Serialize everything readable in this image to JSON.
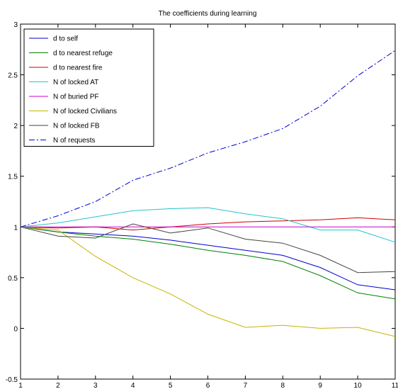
{
  "chart_data": {
    "type": "line",
    "title": "The coefficients during learning",
    "xlabel": "",
    "ylabel": "",
    "xlim": [
      1,
      11
    ],
    "ylim": [
      -0.5,
      3
    ],
    "x": [
      1,
      2,
      3,
      4,
      5,
      6,
      7,
      8,
      9,
      10,
      11
    ],
    "xticks": [
      1,
      2,
      3,
      4,
      5,
      6,
      7,
      8,
      9,
      10,
      11
    ],
    "yticks": [
      -0.5,
      0,
      0.5,
      1,
      1.5,
      2,
      2.5,
      3
    ],
    "ytick_labels": [
      "-0.5",
      "0",
      "0.5",
      "1",
      "1.5",
      "2",
      "2.5",
      "3"
    ],
    "grid": false,
    "legend_position": "top-left",
    "series": [
      {
        "name": "d to self",
        "color": "#0000cc",
        "dash": "solid",
        "values": [
          1.0,
          0.95,
          0.93,
          0.91,
          0.87,
          0.82,
          0.77,
          0.72,
          0.6,
          0.43,
          0.38
        ]
      },
      {
        "name": "d to nearest refuge",
        "color": "#008000",
        "dash": "solid",
        "values": [
          1.0,
          0.95,
          0.91,
          0.88,
          0.83,
          0.77,
          0.72,
          0.66,
          0.52,
          0.35,
          0.29
        ]
      },
      {
        "name": "d to nearest fire",
        "color": "#cc0000",
        "dash": "solid",
        "values": [
          1.0,
          0.99,
          1.0,
          0.97,
          1.0,
          1.03,
          1.05,
          1.06,
          1.07,
          1.09,
          1.07
        ]
      },
      {
        "name": "N of locked AT",
        "color": "#22c4cc",
        "dash": "solid",
        "values": [
          1.0,
          1.04,
          1.1,
          1.16,
          1.18,
          1.19,
          1.13,
          1.08,
          0.97,
          0.97,
          0.85
        ]
      },
      {
        "name": "N of buried PF",
        "color": "#cc00cc",
        "dash": "solid",
        "values": [
          1.0,
          1.0,
          1.0,
          1.0,
          1.0,
          1.0,
          1.0,
          1.0,
          1.0,
          1.0,
          1.0
        ]
      },
      {
        "name": "N of locked Civilians",
        "color": "#c8b400",
        "dash": "solid",
        "values": [
          1.0,
          0.97,
          0.71,
          0.5,
          0.34,
          0.14,
          0.01,
          0.03,
          0.0,
          0.01,
          -0.08
        ]
      },
      {
        "name": "N of locked FB",
        "color": "#444444",
        "dash": "solid",
        "values": [
          1.0,
          0.91,
          0.89,
          1.03,
          0.94,
          0.99,
          0.88,
          0.84,
          0.72,
          0.55,
          0.56
        ]
      },
      {
        "name": "N of requests",
        "color": "#0000cc",
        "dash": "dashdot",
        "values": [
          1.0,
          1.11,
          1.25,
          1.46,
          1.58,
          1.73,
          1.84,
          1.97,
          2.19,
          2.49,
          2.74
        ]
      }
    ]
  }
}
